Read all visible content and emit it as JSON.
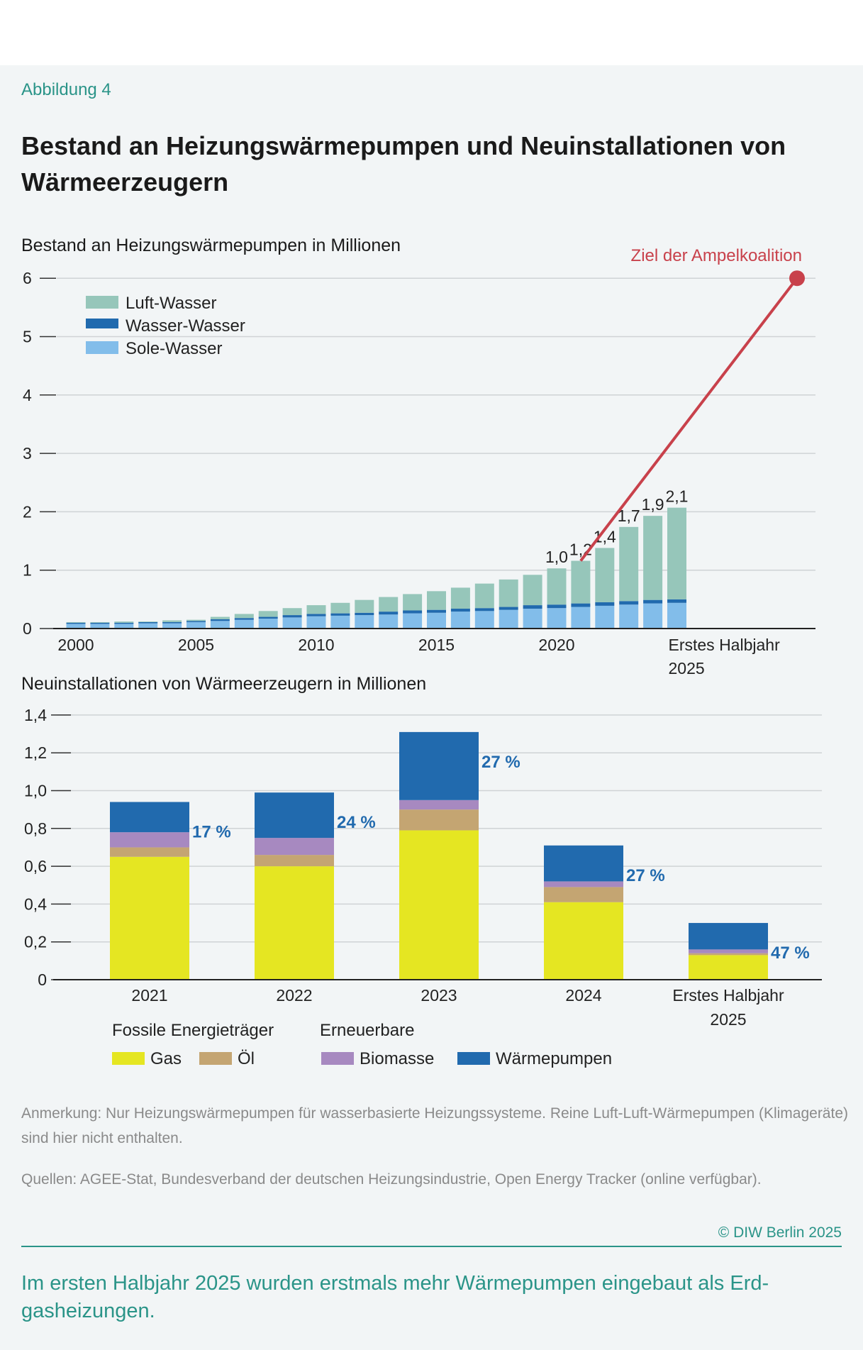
{
  "figure_label": "Abbildung 4",
  "title": "Bestand an Heizungswärmepumpen und Neuinstallationen von Wärmeerzeugern",
  "chart_data": [
    {
      "type": "bar",
      "stacked": true,
      "title": "Bestand an Heizungswärmepumpen",
      "unit": "in Millionen",
      "ylim": [
        0,
        6
      ],
      "yticks": [
        "0",
        "1",
        "2",
        "3",
        "4",
        "5",
        "6"
      ],
      "grid": true,
      "legend_position": "top-left",
      "categories": [
        "2000",
        "2001",
        "2002",
        "2003",
        "2004",
        "2005",
        "2006",
        "2007",
        "2008",
        "2009",
        "2010",
        "2011",
        "2012",
        "2013",
        "2014",
        "2015",
        "2016",
        "2017",
        "2018",
        "2019",
        "2020",
        "2021",
        "2022",
        "2023",
        "2024",
        "Erstes Halbjahr 2025"
      ],
      "xtick_labels": [
        {
          "index": 0,
          "label": "2000"
        },
        {
          "index": 5,
          "label": "2005"
        },
        {
          "index": 10,
          "label": "2010"
        },
        {
          "index": 15,
          "label": "2015"
        },
        {
          "index": 20,
          "label": "2020"
        },
        {
          "index": 25,
          "label": "Erstes Halbjahr",
          "label2": "2025"
        }
      ],
      "series": [
        {
          "name": "Sole-Wasser",
          "color": "#82bdea",
          "values": [
            0.08,
            0.08,
            0.08,
            0.09,
            0.09,
            0.11,
            0.13,
            0.15,
            0.17,
            0.19,
            0.21,
            0.22,
            0.23,
            0.24,
            0.26,
            0.27,
            0.29,
            0.3,
            0.32,
            0.34,
            0.35,
            0.37,
            0.39,
            0.41,
            0.43,
            0.44
          ]
        },
        {
          "name": "Wasser-Wasser",
          "color": "#216aae",
          "values": [
            0.02,
            0.02,
            0.02,
            0.02,
            0.02,
            0.02,
            0.03,
            0.03,
            0.03,
            0.04,
            0.04,
            0.04,
            0.04,
            0.05,
            0.05,
            0.05,
            0.05,
            0.05,
            0.05,
            0.06,
            0.06,
            0.06,
            0.06,
            0.06,
            0.06,
            0.06
          ]
        },
        {
          "name": "Luft-Wasser",
          "color": "#96c6ba",
          "values": [
            0.01,
            0.01,
            0.02,
            0.01,
            0.03,
            0.02,
            0.04,
            0.07,
            0.1,
            0.12,
            0.15,
            0.18,
            0.22,
            0.25,
            0.28,
            0.32,
            0.36,
            0.42,
            0.47,
            0.52,
            0.62,
            0.73,
            0.93,
            1.27,
            1.44,
            1.57
          ]
        }
      ],
      "totals_labels": [
        {
          "index": 20,
          "label": "1,0"
        },
        {
          "index": 21,
          "label": "1,2"
        },
        {
          "index": 22,
          "label": "1,4"
        },
        {
          "index": 23,
          "label": "1,7"
        },
        {
          "index": 24,
          "label": "1,9"
        },
        {
          "index": 25,
          "label": "2,1"
        }
      ],
      "target": {
        "label": "Ziel der Ampelkoalition",
        "from_index": 21,
        "from_value": 1.16,
        "to_year": 2030,
        "to_value": 6,
        "color": "#c8414b"
      }
    },
    {
      "type": "bar",
      "stacked": true,
      "title": "Neuinstallationen von Wärmeerzeugern",
      "unit": "in Millionen",
      "ylim": [
        0,
        1.4
      ],
      "yticks": [
        "0",
        "0,2",
        "0,4",
        "0,6",
        "0,8",
        "1,0",
        "1,2",
        "1,4"
      ],
      "grid": true,
      "legend_position": "bottom",
      "categories": [
        "2021",
        "2022",
        "2023",
        "2024",
        "Erstes Halbjahr 2025"
      ],
      "category_lines": [
        [
          "2021"
        ],
        [
          "2022"
        ],
        [
          "2023"
        ],
        [
          "2024"
        ],
        [
          "Erstes Halbjahr",
          "2025"
        ]
      ],
      "legend_groups": [
        "Fossile Energieträger",
        "Erneuerbare"
      ],
      "series": [
        {
          "name": "Gas",
          "group": 0,
          "color": "#e5e622",
          "values": [
            0.65,
            0.6,
            0.79,
            0.41,
            0.13
          ]
        },
        {
          "name": "Öl",
          "group": 0,
          "color": "#c4a572",
          "values": [
            0.05,
            0.06,
            0.11,
            0.08,
            0.01
          ]
        },
        {
          "name": "Biomasse",
          "group": 1,
          "color": "#a789c0",
          "values": [
            0.08,
            0.09,
            0.05,
            0.03,
            0.02
          ]
        },
        {
          "name": "Wärmepumpen",
          "group": 1,
          "color": "#216aae",
          "values": [
            0.16,
            0.24,
            0.36,
            0.19,
            0.14
          ]
        }
      ],
      "share_labels": [
        "17 %",
        "24 %",
        "27 %",
        "27 %",
        "47 %"
      ],
      "share_label_color": "#216aae"
    }
  ],
  "notes": {
    "remark": "Anmerkung: Nur Heizungswärmepumpen für wasserbasierte Heizungssysteme. Reine Luft-Luft-Wärmepumpen (Klimageräte) sind hier nicht enthalten.",
    "sources": "Quellen: AGEE-Stat, Bundesverband der deutschen Heizungsindustrie, Open Energy Tracker (online verfügbar)."
  },
  "copyright": "© DIW Berlin 2025",
  "summary": "Im ersten Halbjahr 2025 wurden erstmals mehr Wärmepumpen eingebaut als Erd­gasheizungen.",
  "colors": {
    "accent": "#2a9488",
    "background": "#f2f5f6",
    "target": "#c8414b"
  }
}
